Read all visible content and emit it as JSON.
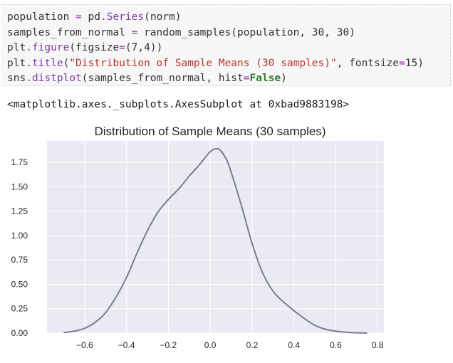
{
  "notebook": {
    "code_lines": [
      [
        {
          "t": "population",
          "c": "n"
        },
        {
          "t": " ",
          "c": "p"
        },
        {
          "t": "=",
          "c": "o"
        },
        {
          "t": " pd",
          "c": "n"
        },
        {
          "t": ".",
          "c": "o"
        },
        {
          "t": "Series",
          "c": "m"
        },
        {
          "t": "(norm)",
          "c": "p"
        }
      ],
      [
        {
          "t": "samples_from_normal",
          "c": "n"
        },
        {
          "t": " ",
          "c": "p"
        },
        {
          "t": "=",
          "c": "o"
        },
        {
          "t": " random_samples(population, ",
          "c": "n"
        },
        {
          "t": "30",
          "c": "n"
        },
        {
          "t": ", ",
          "c": "p"
        },
        {
          "t": "30",
          "c": "n"
        },
        {
          "t": ")",
          "c": "p"
        }
      ],
      [
        {
          "t": "plt",
          "c": "n"
        },
        {
          "t": ".",
          "c": "o"
        },
        {
          "t": "figure",
          "c": "m"
        },
        {
          "t": "(figsize",
          "c": "p"
        },
        {
          "t": "=",
          "c": "o"
        },
        {
          "t": "(",
          "c": "p"
        },
        {
          "t": "7",
          "c": "n"
        },
        {
          "t": ",",
          "c": "p"
        },
        {
          "t": "4",
          "c": "n"
        },
        {
          "t": "))",
          "c": "p"
        }
      ],
      [
        {
          "t": "plt",
          "c": "n"
        },
        {
          "t": ".",
          "c": "o"
        },
        {
          "t": "title",
          "c": "m"
        },
        {
          "t": "(",
          "c": "p"
        },
        {
          "t": "\"Distribution of Sample Means (30 samples)\"",
          "c": "s"
        },
        {
          "t": ", fontsize",
          "c": "p"
        },
        {
          "t": "=",
          "c": "o"
        },
        {
          "t": "15",
          "c": "n"
        },
        {
          "t": ")",
          "c": "p"
        }
      ],
      [
        {
          "t": "sns",
          "c": "n"
        },
        {
          "t": ".",
          "c": "o"
        },
        {
          "t": "distplot",
          "c": "m"
        },
        {
          "t": "(samples_from_normal, hist",
          "c": "p"
        },
        {
          "t": "=",
          "c": "o"
        },
        {
          "t": "False",
          "c": "k"
        },
        {
          "t": ")",
          "c": "p"
        }
      ]
    ],
    "output_text": "<matplotlib.axes._subplots.AxesSubplot at 0xbad9883198>"
  },
  "colors": {
    "plot_background": "#eaeaf2",
    "grid": "#ffffff",
    "line": "#7a7c92"
  },
  "chart_data": {
    "type": "line",
    "title": "Distribution of Sample Means (30 samples)",
    "xlabel": "",
    "ylabel": "",
    "xlim": [
      -0.78,
      0.83
    ],
    "ylim": [
      0.0,
      1.97
    ],
    "grid": true,
    "xticks": [
      -0.6,
      -0.4,
      -0.2,
      0.0,
      0.2,
      0.4,
      0.6,
      0.8
    ],
    "xtick_labels": [
      "−0.6",
      "−0.4",
      "−0.2",
      "0.0",
      "0.2",
      "0.4",
      "0.6",
      "0.8"
    ],
    "yticks": [
      0.0,
      0.25,
      0.5,
      0.75,
      1.0,
      1.25,
      1.5,
      1.75
    ],
    "ytick_labels": [
      "0.00",
      "0.25",
      "0.50",
      "0.75",
      "1.00",
      "1.25",
      "1.50",
      "1.75"
    ],
    "series": [
      {
        "x": [
          -0.7,
          -0.65,
          -0.6,
          -0.55,
          -0.5,
          -0.45,
          -0.4,
          -0.35,
          -0.3,
          -0.25,
          -0.2,
          -0.15,
          -0.1,
          -0.05,
          0.0,
          0.03,
          0.05,
          0.08,
          0.1,
          0.15,
          0.2,
          0.25,
          0.3,
          0.35,
          0.4,
          0.45,
          0.5,
          0.55,
          0.6,
          0.65,
          0.7,
          0.75
        ],
        "y": [
          0.005,
          0.02,
          0.05,
          0.11,
          0.21,
          0.37,
          0.57,
          0.82,
          1.05,
          1.24,
          1.37,
          1.48,
          1.61,
          1.73,
          1.86,
          1.89,
          1.87,
          1.77,
          1.65,
          1.3,
          0.92,
          0.62,
          0.43,
          0.32,
          0.23,
          0.15,
          0.08,
          0.04,
          0.02,
          0.008,
          0.003,
          0.001
        ]
      }
    ]
  }
}
